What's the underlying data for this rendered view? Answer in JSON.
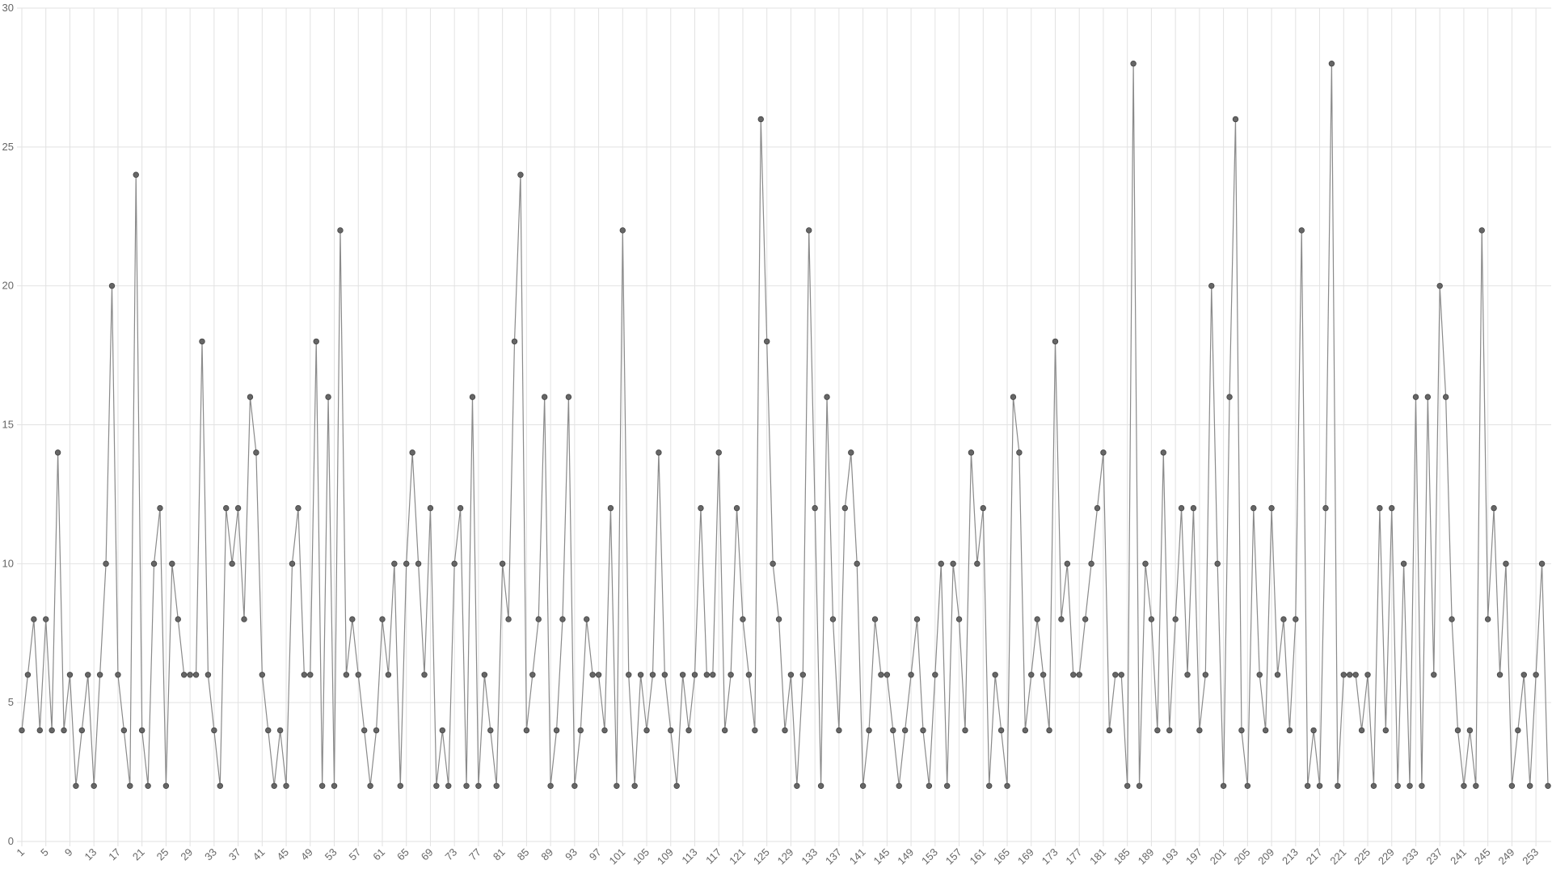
{
  "chart_data": {
    "type": "line",
    "color": "#666666",
    "grid": true,
    "ylim": [
      0,
      30
    ],
    "yticks": [
      0,
      5,
      10,
      15,
      20,
      25,
      30
    ],
    "categories": [
      "1",
      null,
      null,
      null,
      "5",
      null,
      null,
      null,
      "9",
      null,
      null,
      null,
      "13",
      null,
      null,
      null,
      "17",
      null,
      null,
      null,
      "21",
      null,
      null,
      null,
      "25",
      null,
      null,
      null,
      "29",
      null,
      null,
      null,
      "33",
      null,
      null,
      null,
      "37",
      null,
      null,
      null,
      "41",
      null,
      null,
      null,
      "45",
      null,
      null,
      null,
      "49",
      null,
      null,
      null,
      "53",
      null,
      null,
      null,
      "57",
      null,
      null,
      null,
      "61",
      null,
      null,
      null,
      "65",
      null,
      null,
      null,
      "69",
      null,
      null,
      null,
      "73",
      null,
      null,
      null,
      "77",
      null,
      null,
      null,
      "81",
      null,
      null,
      null,
      "85",
      null,
      null,
      null,
      "89",
      null,
      null,
      null,
      "93",
      null,
      null,
      null,
      "97",
      null,
      null,
      null,
      "101",
      null,
      null,
      null,
      "105",
      null,
      null,
      null,
      "109",
      null,
      null,
      null,
      "113",
      null,
      null,
      null,
      "117",
      null,
      null,
      null,
      "121",
      null,
      null,
      null,
      "125",
      null,
      null,
      null,
      "129",
      null,
      null,
      null,
      "133",
      null,
      null,
      null,
      "137",
      null,
      null,
      null,
      "141",
      null,
      null,
      null,
      "145",
      null,
      null,
      null,
      "149",
      null,
      null,
      null,
      "153",
      null,
      null,
      null,
      "157",
      null,
      null,
      null,
      "161",
      null,
      null,
      null,
      "165",
      null,
      null,
      null,
      "169",
      null,
      null,
      null,
      "173",
      null,
      null,
      null,
      "177",
      null,
      null,
      null,
      "181",
      null,
      null,
      null,
      "185",
      null,
      null,
      null,
      "189",
      null,
      null,
      null,
      "193",
      null,
      null,
      null,
      "197",
      null,
      null,
      null,
      "201",
      null,
      null,
      null,
      "205",
      null,
      null,
      null,
      "209",
      null,
      null,
      null,
      "213",
      null,
      null,
      null,
      "217",
      null,
      null,
      null,
      "221",
      null,
      null,
      null,
      "225",
      null,
      null,
      null,
      "229",
      null,
      null,
      null,
      "233",
      null,
      null,
      null,
      "237",
      null,
      null,
      null,
      "241",
      null,
      null,
      null,
      "245",
      null,
      null,
      null,
      "249",
      null,
      null,
      null,
      "253",
      null,
      null
    ],
    "values": [
      4,
      6,
      8,
      4,
      8,
      4,
      14,
      4,
      6,
      2,
      4,
      6,
      2,
      6,
      10,
      20,
      6,
      4,
      2,
      24,
      4,
      2,
      10,
      12,
      2,
      10,
      8,
      6,
      6,
      6,
      18,
      6,
      4,
      2,
      12,
      10,
      12,
      8,
      16,
      14,
      6,
      4,
      2,
      4,
      2,
      10,
      12,
      6,
      6,
      18,
      2,
      16,
      2,
      22,
      6,
      8,
      6,
      4,
      2,
      4,
      8,
      6,
      10,
      2,
      10,
      14,
      10,
      6,
      12,
      2,
      4,
      2,
      10,
      12,
      2,
      16,
      2,
      6,
      4,
      2,
      10,
      8,
      18,
      24,
      4,
      6,
      8,
      16,
      2,
      4,
      8,
      16,
      2,
      4,
      8,
      6,
      6,
      4,
      12,
      2,
      22,
      6,
      2,
      6,
      4,
      6,
      14,
      6,
      4,
      2,
      6,
      4,
      6,
      12,
      6,
      6,
      14,
      4,
      6,
      12,
      8,
      6,
      4,
      26,
      18,
      10,
      8,
      4,
      6,
      2,
      6,
      22,
      12,
      2,
      16,
      8,
      4,
      12,
      14,
      10,
      2,
      4,
      8,
      6,
      6,
      4,
      2,
      4,
      6,
      8,
      4,
      2,
      6,
      10,
      2,
      10,
      8,
      4,
      14,
      10,
      12,
      2,
      6,
      4,
      2,
      16,
      14,
      4,
      6,
      8,
      6,
      4,
      18,
      8,
      10,
      6,
      6,
      8,
      10,
      12,
      14,
      4,
      6,
      6,
      2,
      28,
      2,
      10,
      8,
      4,
      14,
      4,
      8,
      12,
      6,
      12,
      4,
      6,
      20,
      10,
      2,
      16,
      26,
      4,
      2,
      12,
      6,
      4,
      12,
      6,
      8,
      4,
      8,
      22,
      2,
      4,
      2,
      12,
      28,
      2,
      6,
      6,
      6,
      4,
      6,
      2,
      12,
      4,
      12,
      2,
      10,
      2,
      16,
      2,
      16,
      6,
      20,
      16,
      8,
      4,
      2,
      4,
      2,
      22,
      8,
      12,
      6,
      10,
      2,
      4,
      6,
      2,
      6,
      10,
      2
    ]
  }
}
